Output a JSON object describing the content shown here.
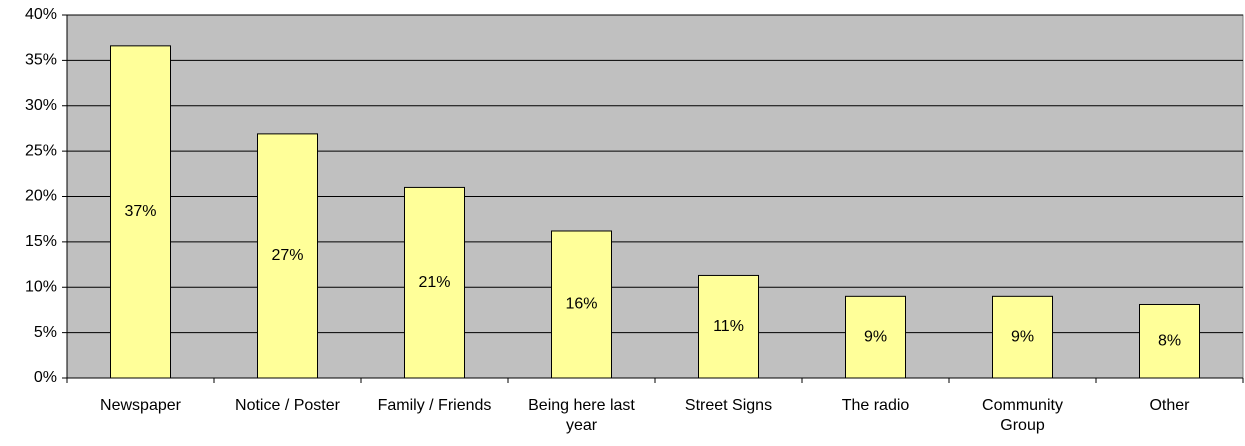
{
  "chart_data": {
    "type": "bar",
    "categories": [
      "Newspaper",
      "Notice / Poster",
      "Family / Friends",
      "Being here last year",
      "Street Signs",
      "The radio",
      "Community Group",
      "Other"
    ],
    "values": [
      36.6,
      26.9,
      21.0,
      16.2,
      11.3,
      9.0,
      9.0,
      8.1
    ],
    "value_labels": [
      "37%",
      "27%",
      "21%",
      "16%",
      "11%",
      "9%",
      "9%",
      "8%"
    ],
    "color": "#ffff99",
    "ylim": [
      0,
      40
    ],
    "yticks": [
      {
        "value": 0,
        "label": "0%"
      },
      {
        "value": 5,
        "label": "5%"
      },
      {
        "value": 10,
        "label": "10%"
      },
      {
        "value": 15,
        "label": "15%"
      },
      {
        "value": 20,
        "label": "20%"
      },
      {
        "value": 25,
        "label": "25%"
      },
      {
        "value": 30,
        "label": "30%"
      },
      {
        "value": 35,
        "label": "35%"
      },
      {
        "value": 40,
        "label": "40%"
      }
    ],
    "grid": true
  }
}
